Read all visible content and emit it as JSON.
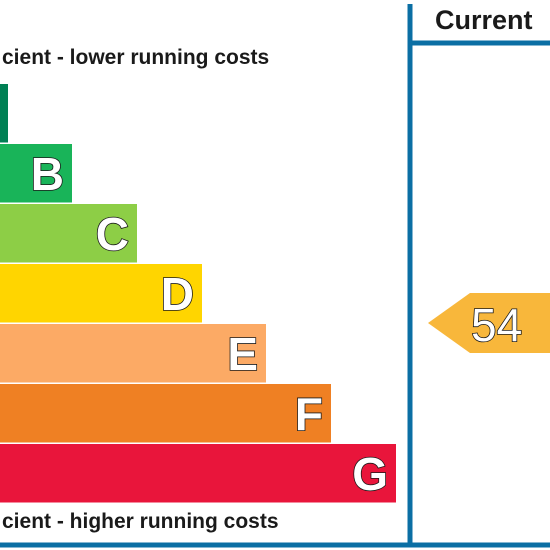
{
  "chart_data": {
    "type": "bar",
    "title": "",
    "header": "Current",
    "top_caption": "cient - lower running costs",
    "bottom_caption": "cient - higher running costs",
    "bands": [
      {
        "letter": "",
        "color": "#008054"
      },
      {
        "letter": "B",
        "color": "#19b459"
      },
      {
        "letter": "C",
        "color": "#8dce46"
      },
      {
        "letter": "D",
        "color": "#ffd500"
      },
      {
        "letter": "E",
        "color": "#fcaa65"
      },
      {
        "letter": "F",
        "color": "#ef8023"
      },
      {
        "letter": "G",
        "color": "#e9153b"
      }
    ],
    "current_rating": {
      "value": "54",
      "band": "E",
      "color": "#f8b73b"
    },
    "frame_color": "#0b6fa4"
  }
}
